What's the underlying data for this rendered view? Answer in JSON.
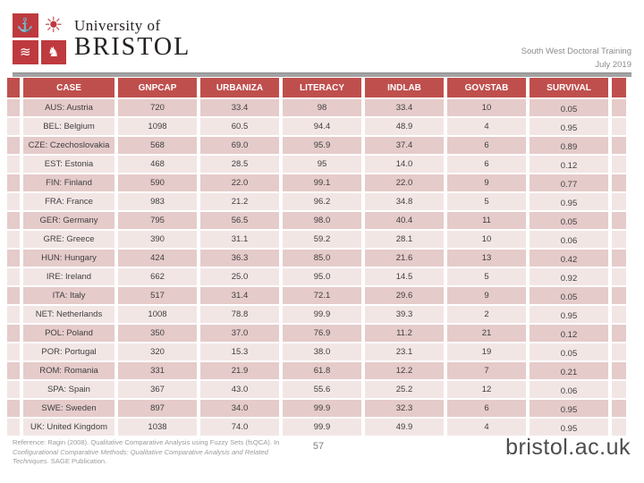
{
  "header": {
    "logo": {
      "org": "University of",
      "name": "BRISTOL",
      "icons": {
        "ship": "⚓",
        "sun": "☀",
        "dolphin": "≋",
        "horse": "♞"
      }
    },
    "right_line1": "South West Doctoral Training",
    "right_line2": "July 2019"
  },
  "table": {
    "columns": [
      "CASE",
      "GNPCAP",
      "URBANIZA",
      "LITERACY",
      "INDLAB",
      "GOVSTAB",
      "SURVIVAL"
    ],
    "rows": [
      [
        "AUS: Austria",
        "720",
        "33.4",
        "98",
        "33.4",
        "10",
        "0.05"
      ],
      [
        "BEL: Belgium",
        "1098",
        "60.5",
        "94.4",
        "48.9",
        "4",
        "0.95"
      ],
      [
        "CZE: Czechoslovakia",
        "568",
        "69.0",
        "95.9",
        "37.4",
        "6",
        "0.89"
      ],
      [
        "EST: Estonia",
        "468",
        "28.5",
        "95",
        "14.0",
        "6",
        "0.12"
      ],
      [
        "FIN: Finland",
        "590",
        "22.0",
        "99.1",
        "22.0",
        "9",
        "0.77"
      ],
      [
        "FRA: France",
        "983",
        "21.2",
        "96.2",
        "34.8",
        "5",
        "0.95"
      ],
      [
        "GER: Germany",
        "795",
        "56.5",
        "98.0",
        "40.4",
        "11",
        "0.05"
      ],
      [
        "GRE: Greece",
        "390",
        "31.1",
        "59.2",
        "28.1",
        "10",
        "0.06"
      ],
      [
        "HUN: Hungary",
        "424",
        "36.3",
        "85.0",
        "21.6",
        "13",
        "0.42"
      ],
      [
        "IRE: Ireland",
        "662",
        "25.0",
        "95.0",
        "14.5",
        "5",
        "0.92"
      ],
      [
        "ITA: Italy",
        "517",
        "31.4",
        "72.1",
        "29.6",
        "9",
        "0.05"
      ],
      [
        "NET: Netherlands",
        "1008",
        "78.8",
        "99.9",
        "39.3",
        "2",
        "0.95"
      ],
      [
        "POL: Poland",
        "350",
        "37.0",
        "76.9",
        "11.2",
        "21",
        "0.12"
      ],
      [
        "POR: Portugal",
        "320",
        "15.3",
        "38.0",
        "23.1",
        "19",
        "0.05"
      ],
      [
        "ROM: Romania",
        "331",
        "21.9",
        "61.8",
        "12.2",
        "7",
        "0.21"
      ],
      [
        "SPA: Spain",
        "367",
        "43.0",
        "55.6",
        "25.2",
        "12",
        "0.06"
      ],
      [
        "SWE: Sweden",
        "897",
        "34.0",
        "99.9",
        "32.3",
        "6",
        "0.95"
      ],
      [
        "UK: United Kingdom",
        "1038",
        "74.0",
        "99.9",
        "49.9",
        "4",
        "0.95"
      ]
    ]
  },
  "footer": {
    "reference_part1": "Reference: Ragin (2008). Qualitative Comparative Analysis using Fuzzy Sets (fsQCA). In ",
    "reference_part2": "Configurational Comparative Methods: Qualitative Comparative Analysis and Related Techniques.",
    "reference_part3": " SAGE Publication.",
    "page_number": "57",
    "website": "bristol.ac.uk"
  },
  "colors": {
    "table_header_bg": "#BF4F4D",
    "row_odd_bg": "#E5CBCA",
    "row_even_bg": "#F2E6E5",
    "crest_red": "#BE3A3E",
    "divider_gray": "#A3A3A3",
    "muted_text": "#8C8C8C"
  }
}
